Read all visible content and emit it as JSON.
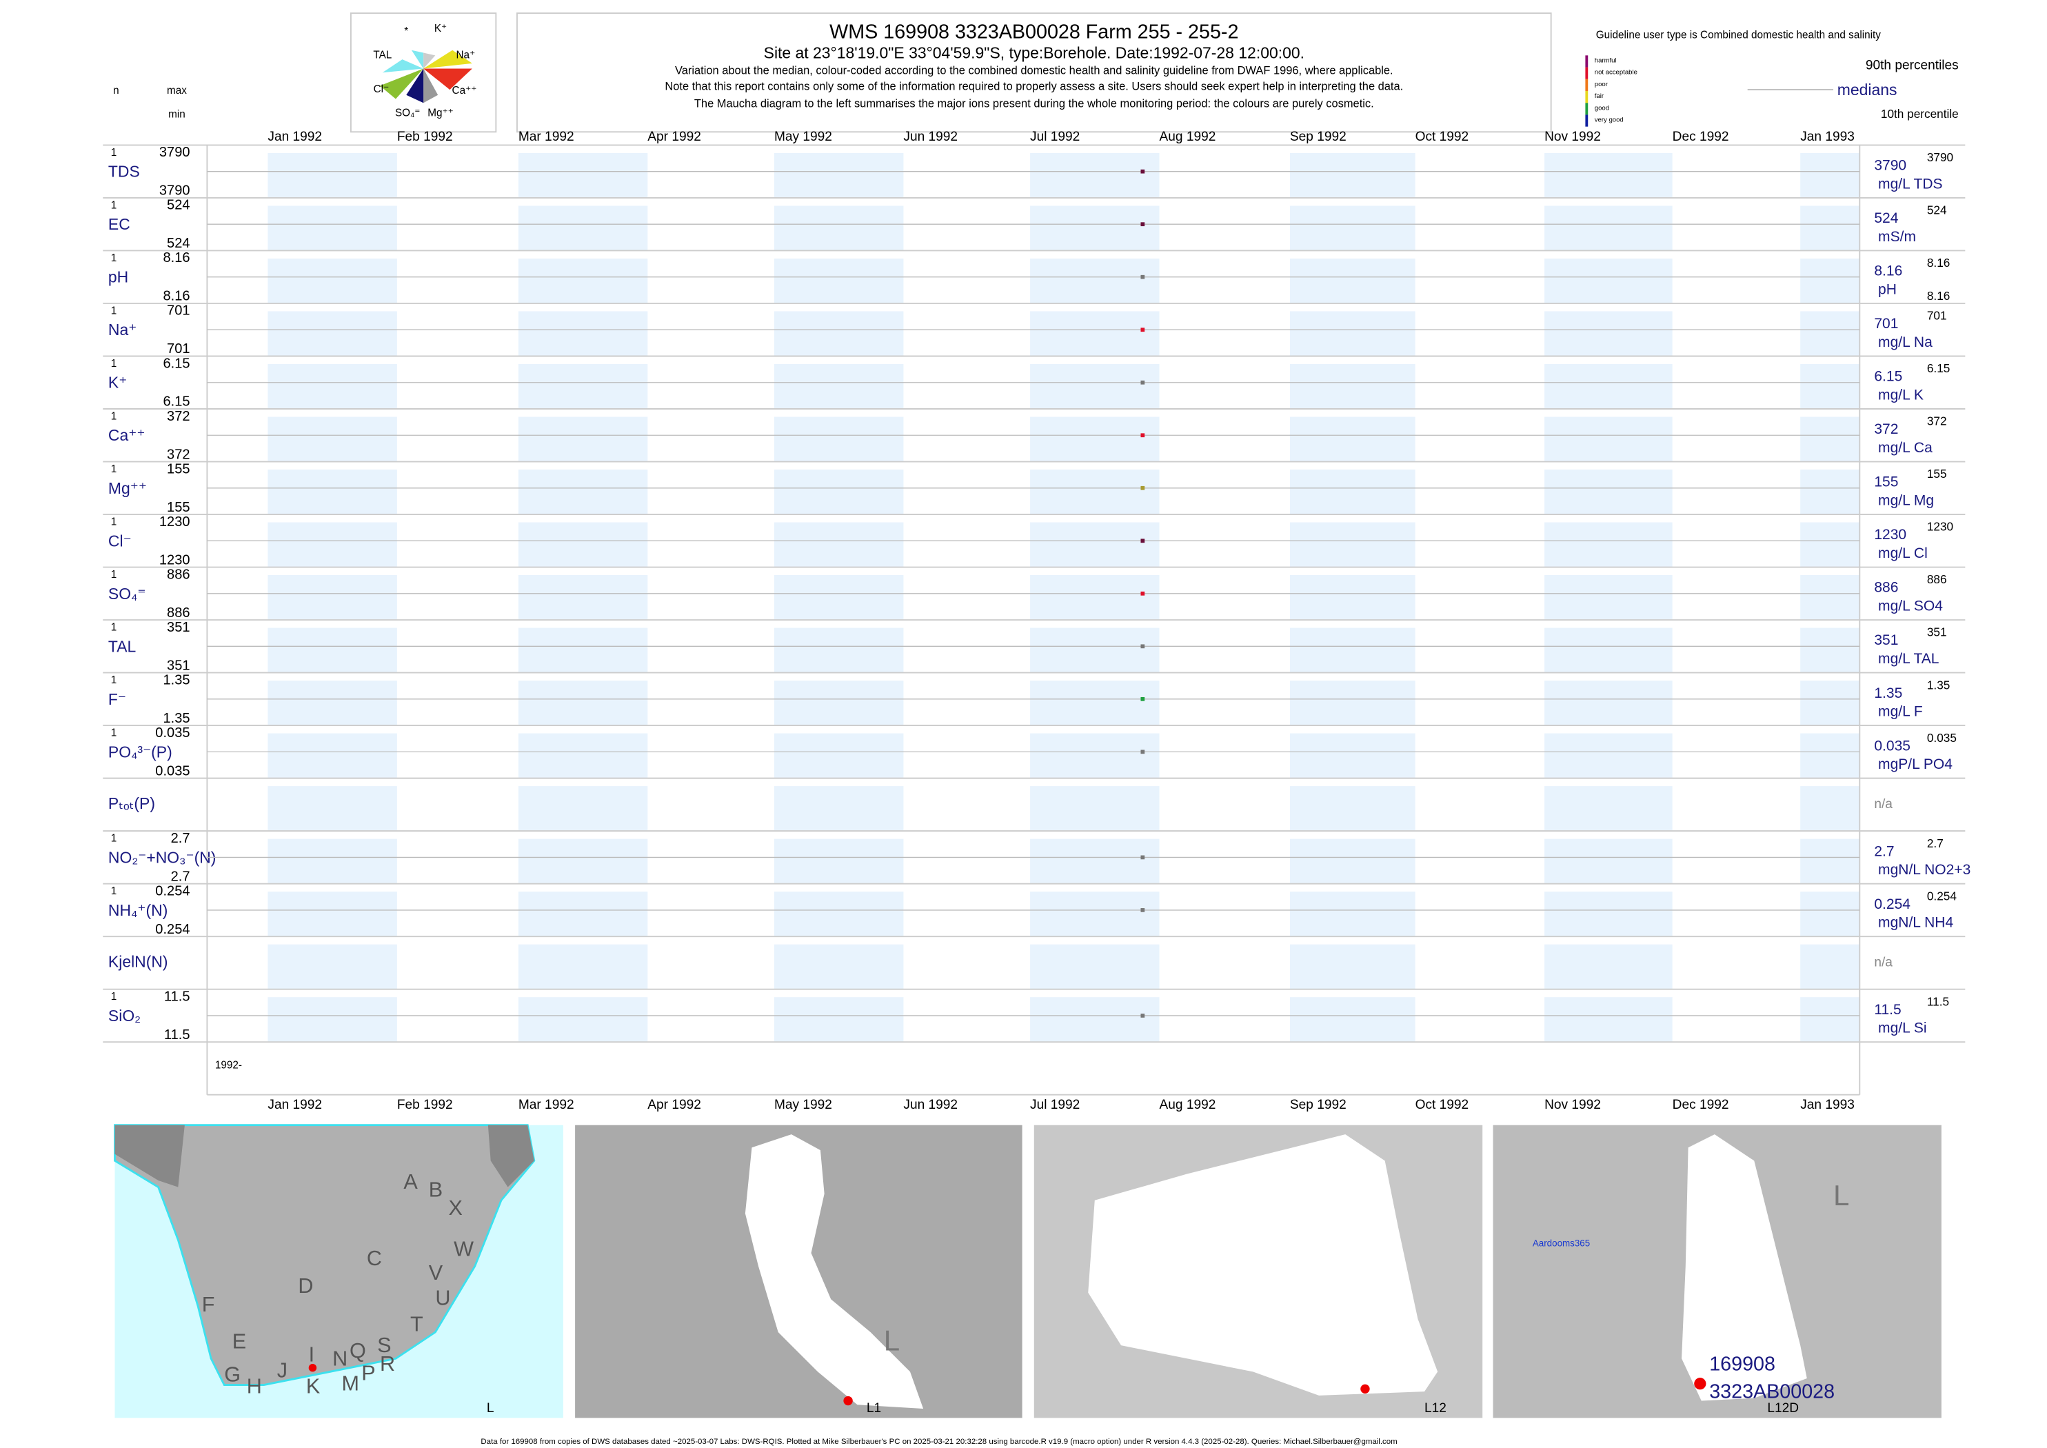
{
  "header": {
    "title": "WMS 169908 3323AB00028 Farm 255 - 255-2",
    "subtitle": "Site at 23°18'19.0\"E 33°04'59.9\"S, type:Borehole. Date:1992-07-28 12:00:00.",
    "notes": [
      "Variation about the median,  colour-coded according to the combined domestic health and salinity guideline from DWAF 1996, where applicable.",
      "Note that this report contains only some of the information required to properly assess a site. Users should seek expert help in interpreting the data.",
      "The Maucha diagram to the left summarises the major ions present during the whole monitoring period: the colours are purely cosmetic."
    ]
  },
  "maucha": {
    "labels": [
      "*",
      "K⁺",
      "TAL",
      "Na⁺",
      "Cl⁻",
      "Ca⁺⁺",
      "SO₄⁼",
      "Mg⁺⁺"
    ]
  },
  "legend": {
    "guideline": "Guideline user type is Combined domestic health and salinity",
    "classes": [
      {
        "name": "harmful",
        "color": "#8b0a6e"
      },
      {
        "name": "not acceptable",
        "color": "#e0102a"
      },
      {
        "name": "poor",
        "color": "#f07818"
      },
      {
        "name": "fair",
        "color": "#e8d820"
      },
      {
        "name": "good",
        "color": "#20a040"
      },
      {
        "name": "very good",
        "color": "#1020a0"
      }
    ],
    "upper": "90th percentiles",
    "median": "medians",
    "lower": "10th percentile"
  },
  "column_heads": {
    "n": "n",
    "max": "max",
    "min": "min"
  },
  "months": [
    "Jan 1992",
    "Feb 1992",
    "Mar 1992",
    "Apr 1992",
    "May 1992",
    "Jun 1992",
    "Jul 1992",
    "Aug 1992",
    "Sep 1992",
    "Oct 1992",
    "Nov 1992",
    "Dec 1992",
    "Jan 1993"
  ],
  "year_label": "1992-",
  "rows": [
    {
      "label": "TDS",
      "n": 1,
      "max": 3790,
      "min": 3790,
      "median": 3790,
      "p90": 3790,
      "unit": "mg/L TDS",
      "color": "#6a0f3a"
    },
    {
      "label": "EC",
      "n": 1,
      "max": 524,
      "min": 524,
      "median": 524,
      "p90": 524,
      "unit": "mS/m",
      "color": "#6a0f3a"
    },
    {
      "label": "pH",
      "n": 1,
      "max": 8.16,
      "min": 8.16,
      "median": 8.16,
      "p90": 8.16,
      "p10": 8.16,
      "unit": "pH",
      "color": "#777777"
    },
    {
      "label": "Na⁺",
      "n": 1,
      "max": 701,
      "min": 701,
      "median": 701,
      "p90": 701,
      "unit": "mg/L Na",
      "color": "#e0102a"
    },
    {
      "label": "K⁺",
      "n": 1,
      "max": 6.15,
      "min": 6.15,
      "median": 6.15,
      "p90": 6.15,
      "unit": "mg/L K",
      "color": "#777777"
    },
    {
      "label": "Ca⁺⁺",
      "n": 1,
      "max": 372,
      "min": 372,
      "median": 372,
      "p90": 372,
      "unit": "mg/L Ca",
      "color": "#e0102a"
    },
    {
      "label": "Mg⁺⁺",
      "n": 1,
      "max": 155,
      "min": 155,
      "median": 155,
      "p90": 155,
      "unit": "mg/L Mg",
      "color": "#a89a30"
    },
    {
      "label": "Cl⁻",
      "n": 1,
      "max": 1230,
      "min": 1230,
      "median": 1230,
      "p90": 1230,
      "unit": "mg/L Cl",
      "color": "#6a0f3a"
    },
    {
      "label": "SO₄⁼",
      "n": 1,
      "max": 886,
      "min": 886,
      "median": 886,
      "p90": 886,
      "unit": "mg/L SO4",
      "color": "#e0102a"
    },
    {
      "label": "TAL",
      "n": 1,
      "max": 351,
      "min": 351,
      "median": 351,
      "p90": 351,
      "unit": "mg/L TAL",
      "color": "#777777"
    },
    {
      "label": "F⁻",
      "n": 1,
      "max": 1.35,
      "min": 1.35,
      "median": 1.35,
      "p90": 1.35,
      "unit": "mg/L F",
      "color": "#20a040"
    },
    {
      "label": "PO₄³⁻(P)",
      "n": 1,
      "max": 0.035,
      "min": 0.035,
      "median": 0.035,
      "p90": 0.035,
      "unit": "mgP/L PO4",
      "color": "#777777"
    },
    {
      "label": "Pₜₒₜ(P)",
      "status": "n/a"
    },
    {
      "label": "NO₂⁻+NO₃⁻(N)",
      "n": 1,
      "max": 2.7,
      "min": 2.7,
      "median": 2.7,
      "p90": 2.7,
      "unit": "mgN/L NO2+3",
      "color": "#777777"
    },
    {
      "label": "NH₄⁺(N)",
      "n": 1,
      "max": 0.254,
      "min": 0.254,
      "median": 0.254,
      "p90": 0.254,
      "unit": "mgN/L NH4",
      "color": "#777777"
    },
    {
      "label": "KjelN(N)",
      "status": "n/a"
    },
    {
      "label": "SiO₂",
      "n": 1,
      "max": 11.5,
      "min": 11.5,
      "median": 11.5,
      "p90": 11.5,
      "unit": "mg/L Si",
      "color": "#777777"
    }
  ],
  "maps": [
    {
      "labels": [
        "A",
        "B",
        "X",
        "C",
        "W",
        "V",
        "U",
        "D",
        "F",
        "T",
        "E",
        "S",
        "R",
        "Q",
        "N",
        "I",
        "G",
        "H",
        "J",
        "K",
        "M",
        "P",
        "L"
      ]
    },
    {
      "labels": [
        "L",
        "L1"
      ]
    },
    {
      "labels": [
        "L12"
      ]
    },
    {
      "labels": [
        "L",
        "Aardooms365",
        "169908",
        "3323AB00028",
        "L12D"
      ]
    }
  ],
  "footer": "Data for 169908 from copies of DWS databases dated ~2025-03-07 Labs: DWS-RQIS. Plotted at Mike Silberbauer's PC on 2025-03-21 20:32:28 using barcode.R v19.9 (macro option) under R version 4.4.3 (2025-02-28). Queries: Michael.Silberbauer@gmail.com"
}
